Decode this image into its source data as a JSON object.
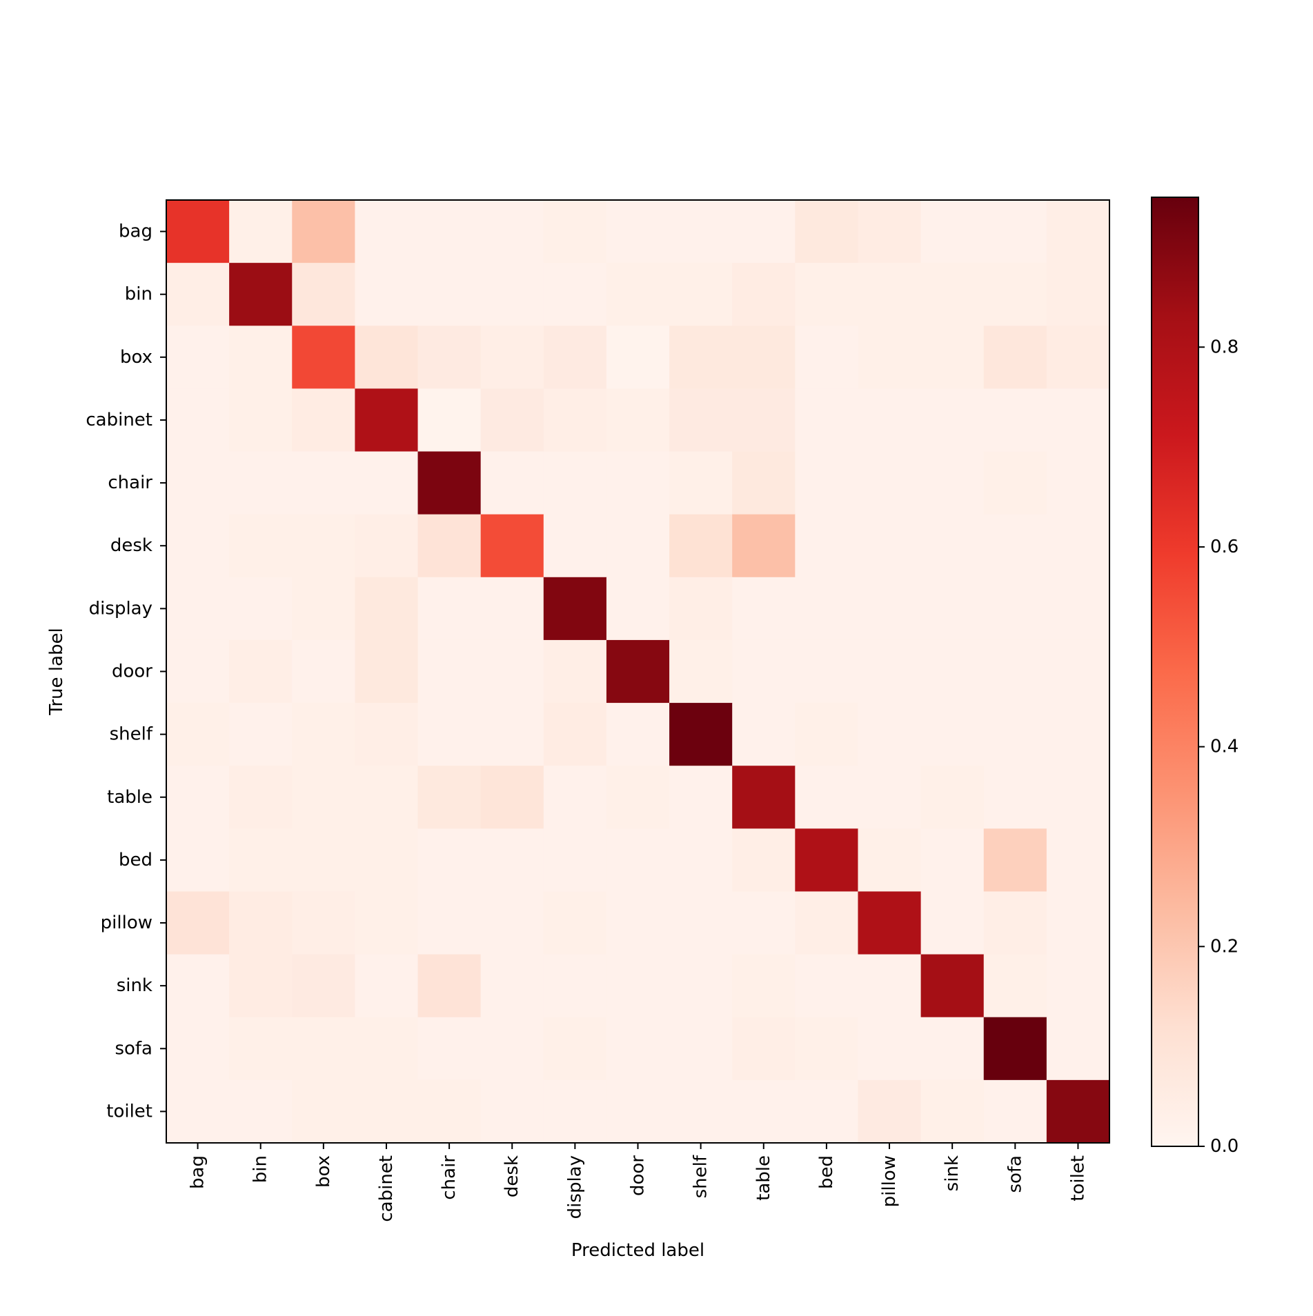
{
  "chart_data": {
    "type": "heatmap",
    "title": "",
    "xlabel": "Predicted label",
    "ylabel": "True label",
    "x_categories": [
      "bag",
      "bin",
      "box",
      "cabinet",
      "chair",
      "desk",
      "display",
      "door",
      "shelf",
      "table",
      "bed",
      "pillow",
      "sink",
      "sofa",
      "toilet"
    ],
    "y_categories": [
      "bag",
      "bin",
      "box",
      "cabinet",
      "chair",
      "desk",
      "display",
      "door",
      "shelf",
      "table",
      "bed",
      "pillow",
      "sink",
      "sofa",
      "toilet"
    ],
    "values": [
      [
        0.62,
        0.03,
        0.22,
        0.02,
        0.02,
        0.02,
        0.03,
        0.02,
        0.02,
        0.02,
        0.07,
        0.05,
        0.02,
        0.02,
        0.04
      ],
      [
        0.04,
        0.85,
        0.08,
        0.02,
        0.02,
        0.02,
        0.02,
        0.03,
        0.03,
        0.05,
        0.03,
        0.03,
        0.03,
        0.03,
        0.04
      ],
      [
        0.02,
        0.03,
        0.56,
        0.09,
        0.06,
        0.04,
        0.06,
        0.01,
        0.07,
        0.07,
        0.02,
        0.03,
        0.03,
        0.08,
        0.05
      ],
      [
        0.02,
        0.03,
        0.05,
        0.8,
        0.01,
        0.06,
        0.04,
        0.03,
        0.06,
        0.06,
        0.02,
        0.02,
        0.02,
        0.02,
        0.02
      ],
      [
        0.02,
        0.02,
        0.02,
        0.02,
        0.91,
        0.02,
        0.02,
        0.02,
        0.03,
        0.07,
        0.02,
        0.02,
        0.02,
        0.03,
        0.02
      ],
      [
        0.02,
        0.03,
        0.03,
        0.04,
        0.1,
        0.55,
        0.02,
        0.02,
        0.11,
        0.22,
        0.02,
        0.02,
        0.02,
        0.02,
        0.02
      ],
      [
        0.02,
        0.02,
        0.03,
        0.07,
        0.02,
        0.02,
        0.9,
        0.02,
        0.04,
        0.02,
        0.02,
        0.02,
        0.02,
        0.02,
        0.02
      ],
      [
        0.02,
        0.04,
        0.02,
        0.07,
        0.02,
        0.02,
        0.04,
        0.89,
        0.03,
        0.02,
        0.02,
        0.02,
        0.02,
        0.02,
        0.02
      ],
      [
        0.03,
        0.02,
        0.03,
        0.04,
        0.02,
        0.02,
        0.05,
        0.02,
        0.94,
        0.02,
        0.03,
        0.02,
        0.02,
        0.02,
        0.02
      ],
      [
        0.02,
        0.04,
        0.03,
        0.03,
        0.07,
        0.09,
        0.02,
        0.03,
        0.02,
        0.83,
        0.02,
        0.02,
        0.03,
        0.02,
        0.02
      ],
      [
        0.02,
        0.03,
        0.03,
        0.03,
        0.02,
        0.02,
        0.02,
        0.02,
        0.02,
        0.04,
        0.8,
        0.03,
        0.02,
        0.17,
        0.02
      ],
      [
        0.1,
        0.05,
        0.04,
        0.03,
        0.02,
        0.02,
        0.03,
        0.02,
        0.02,
        0.02,
        0.04,
        0.8,
        0.02,
        0.04,
        0.02
      ],
      [
        0.02,
        0.05,
        0.06,
        0.02,
        0.1,
        0.02,
        0.02,
        0.02,
        0.02,
        0.03,
        0.02,
        0.02,
        0.83,
        0.03,
        0.02
      ],
      [
        0.02,
        0.03,
        0.03,
        0.03,
        0.02,
        0.02,
        0.03,
        0.02,
        0.02,
        0.04,
        0.03,
        0.02,
        0.02,
        0.95,
        0.02
      ],
      [
        0.02,
        0.02,
        0.03,
        0.03,
        0.03,
        0.02,
        0.02,
        0.02,
        0.02,
        0.02,
        0.02,
        0.06,
        0.03,
        0.02,
        0.89
      ]
    ],
    "colormap": "Reds",
    "vmin": 0.0,
    "vmax": 0.95,
    "colorbar_ticks": [
      "0.0",
      "0.2",
      "0.4",
      "0.6",
      "0.8"
    ],
    "colorbar_tick_values": [
      0.0,
      0.2,
      0.4,
      0.6,
      0.8
    ],
    "grid": false,
    "legend": "colorbar-right"
  }
}
